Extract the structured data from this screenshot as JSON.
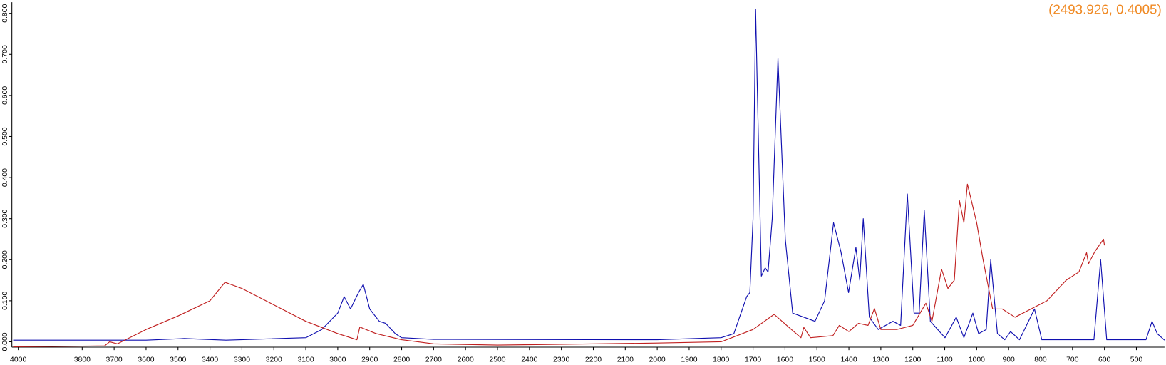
{
  "chart_data": {
    "type": "line",
    "annotation": "(2493.926, 0.4005)",
    "annotation_color": "#f08a24",
    "xlim": [
      4020,
      412
    ],
    "ylim": [
      -0.013,
      0.827
    ],
    "xticks": [
      4000,
      3800,
      3700,
      3600,
      3500,
      3400,
      3300,
      3200,
      3100,
      3000,
      2900,
      2800,
      2700,
      2600,
      2500,
      2400,
      2300,
      2200,
      2100,
      2000,
      1900,
      1800,
      1700,
      1600,
      1500,
      1400,
      1300,
      1200,
      1100,
      1000,
      900,
      800,
      700,
      600,
      500
    ],
    "yticks": [
      {
        "value": 0,
        "label": "0.000"
      },
      {
        "value": 0.1,
        "label": "0.100"
      },
      {
        "value": 0.2,
        "label": "0.200"
      },
      {
        "value": 0.3,
        "label": "0.300"
      },
      {
        "value": 0.4,
        "label": "0.400"
      },
      {
        "value": 0.5,
        "label": "0.500"
      },
      {
        "value": 0.6,
        "label": "0.600"
      },
      {
        "value": 0.7,
        "label": "0.700"
      },
      {
        "value": 0.8,
        "label": "0.800"
      }
    ],
    "series": [
      {
        "color": "#1010b0",
        "x": [
          4016,
          3800,
          3600,
          3480,
          3350,
          3100,
          3050,
          3000,
          2980,
          2960,
          2935,
          2920,
          2900,
          2870,
          2850,
          2820,
          2800,
          2700,
          2000,
          1800,
          1760,
          1720,
          1710,
          1700,
          1692,
          1674,
          1662,
          1653,
          1640,
          1622,
          1599,
          1576,
          1541,
          1506,
          1476,
          1448,
          1425,
          1401,
          1378,
          1366,
          1355,
          1336,
          1308,
          1262,
          1238,
          1217,
          1196,
          1180,
          1164,
          1145,
          1099,
          1064,
          1040,
          1012,
          994,
          970,
          956,
          935,
          912,
          894,
          866,
          819,
          796,
          633,
          612,
          593,
          470,
          451,
          435,
          412
        ],
        "values": [
          0.004,
          0.004,
          0.004,
          0.008,
          0.004,
          0.01,
          0.03,
          0.07,
          0.11,
          0.08,
          0.12,
          0.14,
          0.08,
          0.05,
          0.045,
          0.02,
          0.01,
          0.006,
          0.005,
          0.01,
          0.02,
          0.11,
          0.12,
          0.3,
          0.81,
          0.16,
          0.18,
          0.17,
          0.3,
          0.69,
          0.25,
          0.07,
          0.06,
          0.05,
          0.1,
          0.29,
          0.22,
          0.12,
          0.23,
          0.15,
          0.3,
          0.06,
          0.03,
          0.05,
          0.04,
          0.36,
          0.07,
          0.07,
          0.32,
          0.05,
          0.01,
          0.06,
          0.01,
          0.07,
          0.02,
          0.03,
          0.2,
          0.02,
          0.005,
          0.025,
          0.005,
          0.08,
          0.005,
          0.005,
          0.2,
          0.005,
          0.005,
          0.05,
          0.02,
          0.004
        ]
      },
      {
        "color": "#c02020",
        "x": [
          4016,
          3730,
          3714,
          3690,
          3600,
          3500,
          3400,
          3353,
          3300,
          3250,
          3100,
          3000,
          2940,
          2931,
          2880,
          2800,
          2700,
          2500,
          2000,
          1800,
          1700,
          1634,
          1580,
          1550,
          1541,
          1520,
          1450,
          1430,
          1400,
          1370,
          1340,
          1320,
          1300,
          1250,
          1200,
          1159,
          1140,
          1110,
          1090,
          1070,
          1054,
          1040,
          1029,
          1000,
          980,
          950,
          920,
          880,
          830,
          780,
          720,
          680,
          656,
          650,
          630,
          603,
          600
        ],
        "values": [
          -0.012,
          -0.01,
          0.0,
          -0.005,
          0.03,
          0.063,
          0.1,
          0.145,
          0.13,
          0.11,
          0.05,
          0.02,
          0.005,
          0.036,
          0.02,
          0.005,
          -0.005,
          -0.008,
          -0.003,
          0.0,
          0.03,
          0.067,
          0.03,
          0.01,
          0.035,
          0.01,
          0.015,
          0.04,
          0.025,
          0.045,
          0.04,
          0.081,
          0.03,
          0.03,
          0.04,
          0.094,
          0.05,
          0.177,
          0.13,
          0.15,
          0.344,
          0.29,
          0.384,
          0.29,
          0.2,
          0.08,
          0.08,
          0.06,
          0.08,
          0.1,
          0.15,
          0.17,
          0.217,
          0.19,
          0.22,
          0.25,
          0.235
        ]
      }
    ]
  }
}
